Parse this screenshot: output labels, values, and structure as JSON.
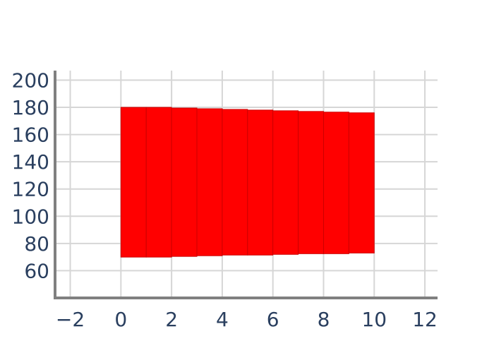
{
  "chart_data": {
    "type": "bar",
    "title": "",
    "xlabel": "",
    "ylabel": "",
    "xlim": [
      -2.6,
      12.5
    ],
    "ylim": [
      40,
      207
    ],
    "x_ticks": [
      -2,
      0,
      2,
      4,
      6,
      8,
      10,
      12
    ],
    "x_tick_labels": [
      "−2",
      "0",
      "2",
      "4",
      "6",
      "8",
      "10",
      "12"
    ],
    "y_ticks": [
      60,
      80,
      100,
      120,
      140,
      160,
      180,
      200
    ],
    "y_tick_labels": [
      "60",
      "80",
      "100",
      "120",
      "140",
      "160",
      "180",
      "200"
    ],
    "grid": true,
    "colors": {
      "bar_fill": "#ff0000",
      "bar_edge": "#cc0000"
    },
    "series": [
      {
        "bars": [
          {
            "x0": 0,
            "x1": 1,
            "bottom": 70.0,
            "top": 180.0
          },
          {
            "x0": 1,
            "x1": 2,
            "bottom": 70.0,
            "top": 180.0
          },
          {
            "x0": 2,
            "x1": 3,
            "bottom": 70.5,
            "top": 179.5
          },
          {
            "x0": 3,
            "x1": 4,
            "bottom": 71.0,
            "top": 179.0
          },
          {
            "x0": 4,
            "x1": 5,
            "bottom": 71.5,
            "top": 178.5
          },
          {
            "x0": 5,
            "x1": 6,
            "bottom": 71.5,
            "top": 178.0
          },
          {
            "x0": 6,
            "x1": 7,
            "bottom": 72.0,
            "top": 177.5
          },
          {
            "x0": 7,
            "x1": 8,
            "bottom": 72.5,
            "top": 177.0
          },
          {
            "x0": 8,
            "x1": 9,
            "bottom": 72.5,
            "top": 176.5
          },
          {
            "x0": 9,
            "x1": 10,
            "bottom": 73.0,
            "top": 176.0
          }
        ]
      }
    ]
  }
}
